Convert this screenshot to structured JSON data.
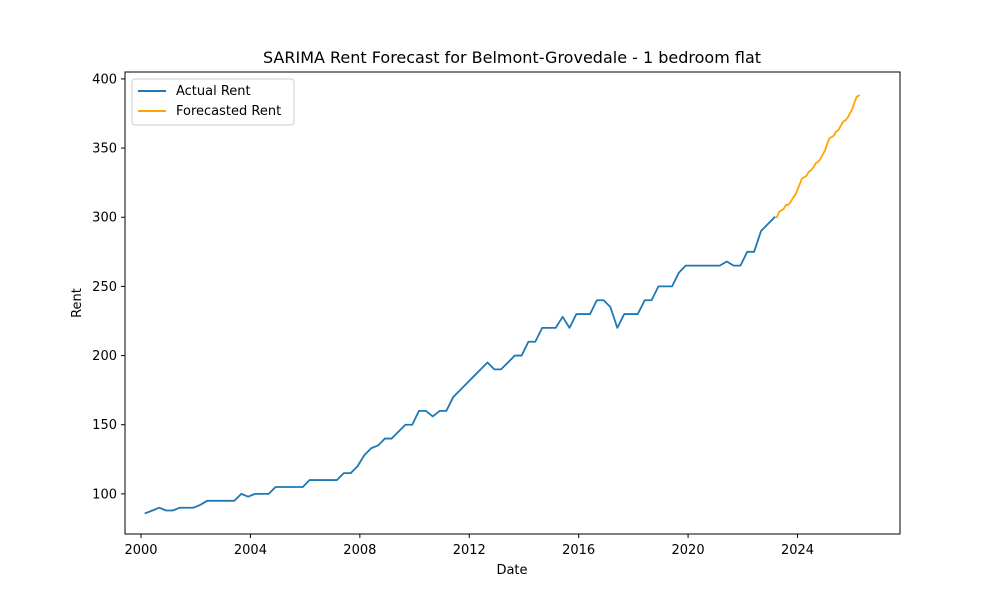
{
  "chart_data": {
    "type": "line",
    "title": "SARIMA Rent Forecast for Belmont-Grovedale - 1 bedroom flat",
    "xlabel": "Date",
    "ylabel": "Rent",
    "xlim": [
      "1999-06-01",
      "2027-10-01"
    ],
    "ylim": [
      71,
      405
    ],
    "x_ticks": [
      2000,
      2004,
      2008,
      2012,
      2016,
      2020,
      2024
    ],
    "y_ticks": [
      100,
      150,
      200,
      250,
      300,
      350,
      400
    ],
    "grid": false,
    "legend_position": "top-left",
    "series": [
      {
        "name": "Actual Rent",
        "color": "#1f77b4",
        "points": [
          [
            "2000-03-01",
            86
          ],
          [
            "2000-06-01",
            88
          ],
          [
            "2000-09-01",
            90
          ],
          [
            "2000-12-01",
            88
          ],
          [
            "2001-03-01",
            88
          ],
          [
            "2001-06-01",
            90
          ],
          [
            "2001-09-01",
            90
          ],
          [
            "2001-12-01",
            90
          ],
          [
            "2002-03-01",
            92
          ],
          [
            "2002-06-01",
            95
          ],
          [
            "2002-09-01",
            95
          ],
          [
            "2002-12-01",
            95
          ],
          [
            "2003-03-01",
            95
          ],
          [
            "2003-06-01",
            95
          ],
          [
            "2003-09-01",
            100
          ],
          [
            "2003-12-01",
            98
          ],
          [
            "2004-03-01",
            100
          ],
          [
            "2004-06-01",
            100
          ],
          [
            "2004-09-01",
            100
          ],
          [
            "2004-12-01",
            105
          ],
          [
            "2005-03-01",
            105
          ],
          [
            "2005-06-01",
            105
          ],
          [
            "2005-09-01",
            105
          ],
          [
            "2005-12-01",
            105
          ],
          [
            "2006-03-01",
            110
          ],
          [
            "2006-06-01",
            110
          ],
          [
            "2006-09-01",
            110
          ],
          [
            "2006-12-01",
            110
          ],
          [
            "2007-03-01",
            110
          ],
          [
            "2007-06-01",
            115
          ],
          [
            "2007-09-01",
            115
          ],
          [
            "2007-12-01",
            120
          ],
          [
            "2008-03-01",
            128
          ],
          [
            "2008-06-01",
            133
          ],
          [
            "2008-09-01",
            135
          ],
          [
            "2008-12-01",
            140
          ],
          [
            "2009-03-01",
            140
          ],
          [
            "2009-06-01",
            145
          ],
          [
            "2009-09-01",
            150
          ],
          [
            "2009-12-01",
            150
          ],
          [
            "2010-03-01",
            160
          ],
          [
            "2010-06-01",
            160
          ],
          [
            "2010-09-01",
            156
          ],
          [
            "2010-12-01",
            160
          ],
          [
            "2011-03-01",
            160
          ],
          [
            "2011-06-01",
            170
          ],
          [
            "2011-09-01",
            175
          ],
          [
            "2011-12-01",
            180
          ],
          [
            "2012-03-01",
            185
          ],
          [
            "2012-06-01",
            190
          ],
          [
            "2012-09-01",
            195
          ],
          [
            "2012-12-01",
            190
          ],
          [
            "2013-03-01",
            190
          ],
          [
            "2013-06-01",
            195
          ],
          [
            "2013-09-01",
            200
          ],
          [
            "2013-12-01",
            200
          ],
          [
            "2014-03-01",
            210
          ],
          [
            "2014-06-01",
            210
          ],
          [
            "2014-09-01",
            220
          ],
          [
            "2014-12-01",
            220
          ],
          [
            "2015-03-01",
            220
          ],
          [
            "2015-06-01",
            228
          ],
          [
            "2015-09-01",
            220
          ],
          [
            "2015-12-01",
            230
          ],
          [
            "2016-03-01",
            230
          ],
          [
            "2016-06-01",
            230
          ],
          [
            "2016-09-01",
            240
          ],
          [
            "2016-12-01",
            240
          ],
          [
            "2017-03-01",
            235
          ],
          [
            "2017-06-01",
            220
          ],
          [
            "2017-09-01",
            230
          ],
          [
            "2017-12-01",
            230
          ],
          [
            "2018-03-01",
            230
          ],
          [
            "2018-06-01",
            240
          ],
          [
            "2018-09-01",
            240
          ],
          [
            "2018-12-01",
            250
          ],
          [
            "2019-03-01",
            250
          ],
          [
            "2019-06-01",
            250
          ],
          [
            "2019-09-01",
            260
          ],
          [
            "2019-12-01",
            265
          ],
          [
            "2020-03-01",
            265
          ],
          [
            "2020-06-01",
            265
          ],
          [
            "2020-09-01",
            265
          ],
          [
            "2020-12-01",
            265
          ],
          [
            "2021-03-01",
            265
          ],
          [
            "2021-06-01",
            268
          ],
          [
            "2021-09-01",
            265
          ],
          [
            "2021-12-01",
            265
          ],
          [
            "2022-03-01",
            275
          ],
          [
            "2022-06-01",
            275
          ],
          [
            "2022-09-01",
            290
          ],
          [
            "2022-12-01",
            295
          ],
          [
            "2023-03-01",
            300
          ]
        ]
      },
      {
        "name": "Forecasted Rent",
        "color": "#ffa500",
        "points": [
          [
            "2023-04-01",
            300
          ],
          [
            "2023-05-01",
            304
          ],
          [
            "2023-06-01",
            305
          ],
          [
            "2023-07-01",
            306
          ],
          [
            "2023-08-01",
            309
          ],
          [
            "2023-09-01",
            309
          ],
          [
            "2023-10-01",
            311
          ],
          [
            "2023-11-01",
            314
          ],
          [
            "2023-12-01",
            316
          ],
          [
            "2024-01-01",
            320
          ],
          [
            "2024-02-01",
            324
          ],
          [
            "2024-03-01",
            328
          ],
          [
            "2024-04-01",
            329
          ],
          [
            "2024-05-01",
            330
          ],
          [
            "2024-06-01",
            333
          ],
          [
            "2024-07-01",
            334
          ],
          [
            "2024-08-01",
            336
          ],
          [
            "2024-09-01",
            339
          ],
          [
            "2024-10-01",
            340
          ],
          [
            "2024-11-01",
            342
          ],
          [
            "2024-12-01",
            345
          ],
          [
            "2025-01-01",
            348
          ],
          [
            "2025-02-01",
            353
          ],
          [
            "2025-03-01",
            357
          ],
          [
            "2025-04-01",
            358
          ],
          [
            "2025-05-01",
            359
          ],
          [
            "2025-06-01",
            362
          ],
          [
            "2025-07-01",
            363
          ],
          [
            "2025-08-01",
            366
          ],
          [
            "2025-09-01",
            369
          ],
          [
            "2025-10-01",
            370
          ],
          [
            "2025-11-01",
            372
          ],
          [
            "2025-12-01",
            375
          ],
          [
            "2026-01-01",
            378
          ],
          [
            "2026-02-01",
            383
          ],
          [
            "2026-03-01",
            387
          ],
          [
            "2026-04-01",
            388
          ]
        ]
      }
    ]
  }
}
